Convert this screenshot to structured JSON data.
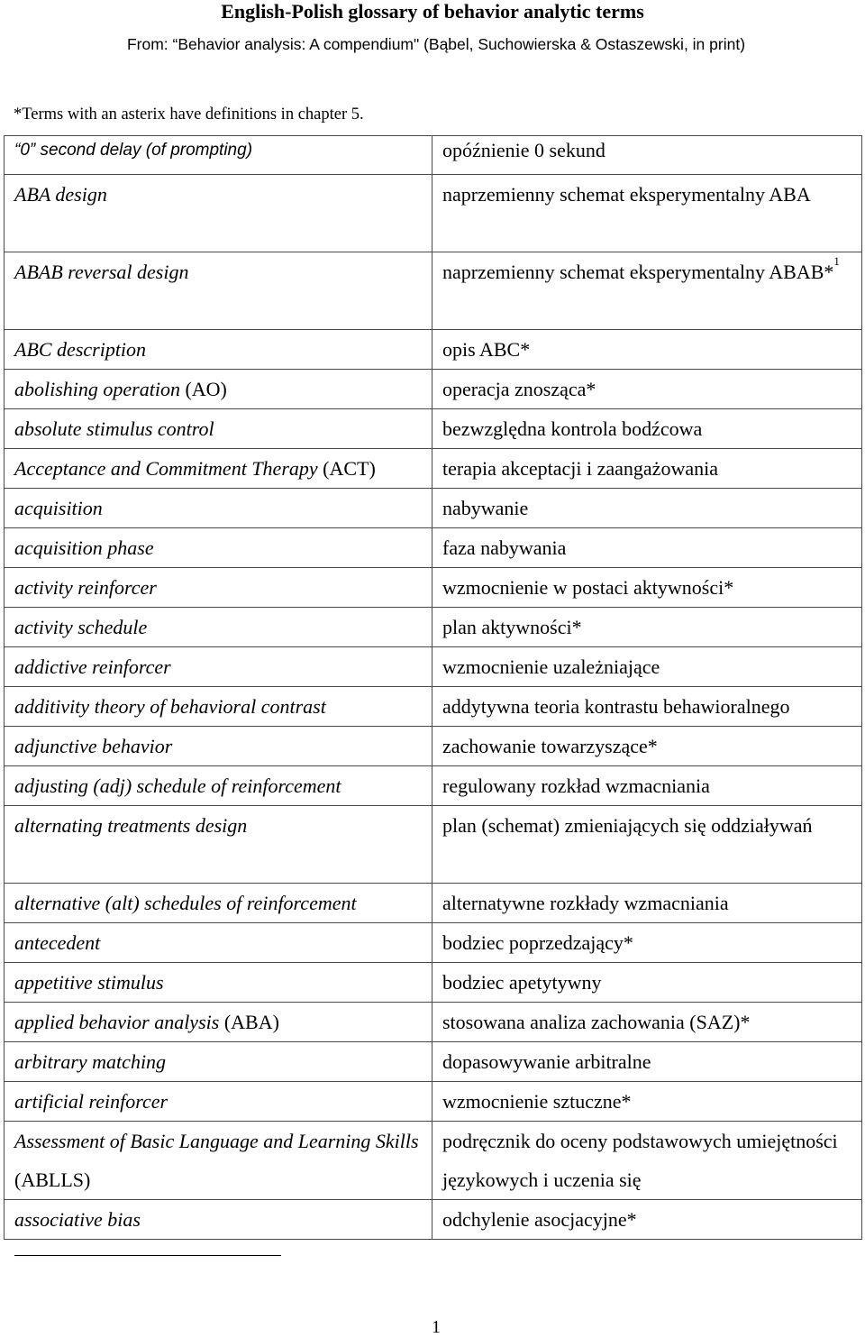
{
  "header": {
    "title": "English-Polish glossary of behavior analytic terms",
    "source": "From: “Behavior analysis: A compendium\" (Bąbel, Suchowierska & Ostaszewski, in print)",
    "note": "*Terms with an asterix have definitions in chapter 5."
  },
  "glossary": {
    "rows": [
      {
        "term": "“0” second delay (of prompting)",
        "abbr": "",
        "pl": "opóźnienie 0 sekund",
        "sup": ""
      },
      {
        "term": "ABA design",
        "abbr": "",
        "pl": "naprzemienny schemat eksperymentalny ABA",
        "sup": ""
      },
      {
        "term": "ABAB reversal design",
        "abbr": "",
        "pl": "naprzemienny schemat eksperymentalny ABAB*",
        "sup": "1"
      },
      {
        "term": "ABC description",
        "abbr": "",
        "pl": "opis ABC*",
        "sup": ""
      },
      {
        "term": "abolishing operation",
        "abbr": "(AO)",
        "pl": "operacja znosząca*",
        "sup": ""
      },
      {
        "term": "absolute stimulus control",
        "abbr": "",
        "pl": "bezwzględna kontrola bodźcowa",
        "sup": ""
      },
      {
        "term": "Acceptance and Commitment Therapy",
        "abbr": "(ACT)",
        "pl": "terapia akceptacji i zaangażowania",
        "sup": ""
      },
      {
        "term": "acquisition",
        "abbr": "",
        "pl": "nabywanie",
        "sup": ""
      },
      {
        "term": "acquisition phase",
        "abbr": "",
        "pl": "faza nabywania",
        "sup": ""
      },
      {
        "term": "activity reinforcer",
        "abbr": "",
        "pl": "wzmocnienie w postaci aktywności*",
        "sup": ""
      },
      {
        "term": "activity schedule",
        "abbr": "",
        "pl": "plan aktywności*",
        "sup": ""
      },
      {
        "term": "addictive reinforcer",
        "abbr": "",
        "pl": "wzmocnienie uzależniające",
        "sup": ""
      },
      {
        "term": "additivity theory of behavioral contrast",
        "abbr": "",
        "pl": "addytywna teoria kontrastu behawioralnego",
        "sup": ""
      },
      {
        "term": "adjunctive behavior",
        "abbr": "",
        "pl": "zachowanie towarzyszące*",
        "sup": ""
      },
      {
        "term": "adjusting (adj) schedule of reinforcement",
        "abbr": "",
        "pl": "regulowany rozkład wzmacniania",
        "sup": ""
      },
      {
        "term": "alternating treatments design",
        "abbr": "",
        "pl": "plan (schemat) zmieniających się oddziaływań",
        "sup": ""
      },
      {
        "term": "alternative (alt) schedules of reinforcement",
        "abbr": "",
        "pl": "alternatywne rozkłady wzmacniania",
        "sup": ""
      },
      {
        "term": "antecedent",
        "abbr": "",
        "pl": "bodziec poprzedzający*",
        "sup": ""
      },
      {
        "term": "appetitive stimulus",
        "abbr": "",
        "pl": "bodziec apetytywny",
        "sup": ""
      },
      {
        "term": "applied behavior analysis",
        "abbr": "(ABA)",
        "pl": "stosowana analiza zachowania (SAZ)*",
        "sup": ""
      },
      {
        "term": "arbitrary matching",
        "abbr": "",
        "pl": "dopasowywanie arbitralne",
        "sup": ""
      },
      {
        "term": "artificial reinforcer",
        "abbr": "",
        "pl": "wzmocnienie sztuczne*",
        "sup": ""
      },
      {
        "term": "Assessment of Basic Language and Learning Skills",
        "abbr": "(ABLLS)",
        "pl": "podręcznik do oceny podstawowych umiejętności językowych i uczenia się",
        "sup": ""
      },
      {
        "term": "associative bias",
        "abbr": "",
        "pl": "odchylenie asocjacyjne*",
        "sup": ""
      }
    ]
  },
  "footer": {
    "page_number": "1"
  }
}
